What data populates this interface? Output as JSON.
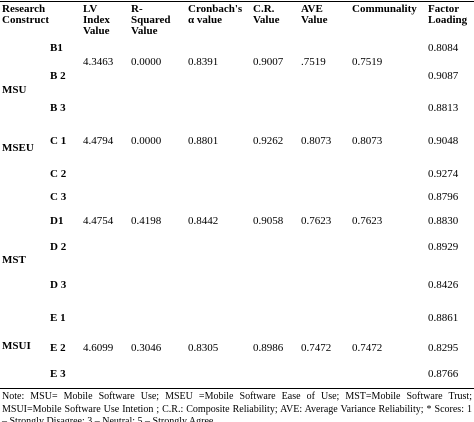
{
  "header": {
    "columns": [
      "Research Construct",
      "LV Index Value",
      "R-Squared Value",
      "Cronbach's α value",
      "C.R. Value",
      "AVE Value",
      "Communality",
      "Factor Loading"
    ]
  },
  "groups": [
    {
      "construct": "MSU",
      "items": [
        {
          "item": "B1",
          "lv": "4.3463",
          "r2": "0.0000",
          "alpha": "0.8391",
          "cr": "0.9007",
          "ave": ".7519",
          "communality": "0.7519",
          "loading": "0.8084"
        },
        {
          "item": "B 2",
          "loading": "0.9087"
        },
        {
          "item": "B 3",
          "loading": "0.8813"
        }
      ]
    },
    {
      "construct": "MSEU",
      "items": [
        {
          "item": "C 1",
          "lv": "4.4794",
          "r2": "0.0000",
          "alpha": "0.8801",
          "cr": "0.9262",
          "ave": "0.8073",
          "communality": "0.8073",
          "loading": "0.9048"
        },
        {
          "item": "C 2",
          "loading": "0.9274"
        },
        {
          "item": "C 3",
          "loading": "0.8796"
        }
      ]
    },
    {
      "construct": "MST",
      "items": [
        {
          "item": "D1",
          "lv": "4.4754",
          "r2": "0.4198",
          "alpha": "0.8442",
          "cr": "0.9058",
          "ave": "0.7623",
          "communality": "0.7623",
          "loading": "0.8830"
        },
        {
          "item": "D 2",
          "loading": "0.8929"
        },
        {
          "item": "D 3",
          "loading": "0.8426"
        }
      ]
    },
    {
      "construct": "MSUI",
      "items": [
        {
          "item": "E 1",
          "loading": "0.8861"
        },
        {
          "item": "E 2",
          "lv": "4.6099",
          "r2": "0.3046",
          "alpha": "0.8305",
          "cr": "0.8986",
          "ave": "0.7472",
          "communality": "0.7472",
          "loading": "0.8295"
        },
        {
          "item": "E 3",
          "loading": "0.8766"
        }
      ]
    }
  ],
  "note": "Note:   MSU= Mobile Software Use; MSEU =Mobile Software Ease of Use; MST=Mobile Software Trust; MSUI=Mobile Software Use Intetion ; C.R.: Composite Reliability; AVE: Average Variance Reliability; * Scores: 1 – Strongly Disagree; 3 – Neutral; 5 – Strongly Agree"
}
